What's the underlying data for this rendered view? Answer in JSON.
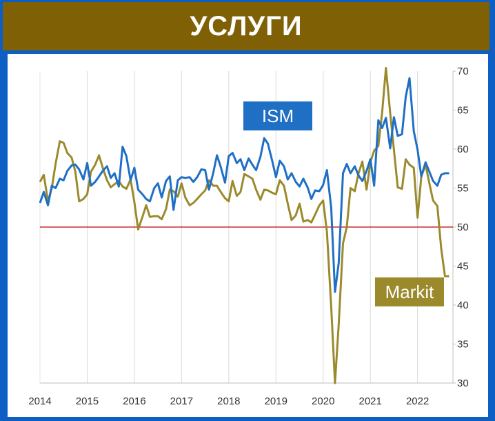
{
  "title": "УСЛУГИ",
  "colors": {
    "ism": "#1f6fc5",
    "markit": "#9b8a2c",
    "threshold": "#c00000",
    "title_bg": "#7f6004",
    "frame": "#0d5fc4"
  },
  "chart_data": {
    "type": "line",
    "title": "",
    "xlabel": "",
    "ylabel": "",
    "ylim": [
      30,
      70
    ],
    "xlim": [
      2014,
      2022.75
    ],
    "y_ticks": [
      "30",
      "35",
      "40",
      "45",
      "50",
      "55",
      "60",
      "65",
      "70"
    ],
    "x_ticks": [
      "2014",
      "2015",
      "2016",
      "2017",
      "2018",
      "2019",
      "2020",
      "2021",
      "2022"
    ],
    "grid": "vertical",
    "threshold": 50,
    "series": [
      {
        "name": "ISM",
        "x": [
          2014.0,
          2014.08,
          2014.17,
          2014.25,
          2014.33,
          2014.42,
          2014.5,
          2014.58,
          2014.67,
          2014.75,
          2014.83,
          2014.92,
          2015.0,
          2015.08,
          2015.17,
          2015.25,
          2015.33,
          2015.42,
          2015.5,
          2015.58,
          2015.67,
          2015.75,
          2015.83,
          2015.92,
          2016.0,
          2016.08,
          2016.17,
          2016.25,
          2016.33,
          2016.42,
          2016.5,
          2016.58,
          2016.67,
          2016.75,
          2016.83,
          2016.92,
          2017.0,
          2017.08,
          2017.17,
          2017.25,
          2017.33,
          2017.42,
          2017.5,
          2017.58,
          2017.67,
          2017.75,
          2017.83,
          2017.92,
          2018.0,
          2018.08,
          2018.17,
          2018.25,
          2018.33,
          2018.42,
          2018.5,
          2018.58,
          2018.67,
          2018.75,
          2018.83,
          2018.92,
          2019.0,
          2019.08,
          2019.17,
          2019.25,
          2019.33,
          2019.42,
          2019.5,
          2019.58,
          2019.67,
          2019.75,
          2019.83,
          2019.92,
          2020.0,
          2020.08,
          2020.17,
          2020.25,
          2020.33,
          2020.42,
          2020.5,
          2020.58,
          2020.67,
          2020.75,
          2020.83,
          2020.92,
          2021.0,
          2021.08,
          2021.17,
          2021.25,
          2021.33,
          2021.42,
          2021.5,
          2021.58,
          2021.67,
          2021.75,
          2021.83,
          2021.92,
          2022.0,
          2022.08,
          2022.17,
          2022.25,
          2022.33,
          2022.42,
          2022.5,
          2022.58,
          2022.67
        ],
        "y": [
          53.1,
          54.5,
          52.8,
          55.3,
          55.0,
          56.2,
          56.0,
          57.2,
          57.9,
          58.0,
          57.4,
          56.1,
          58.2,
          55.3,
          55.8,
          56.5,
          57.2,
          57.8,
          56.3,
          56.9,
          55.2,
          60.3,
          59.1,
          56.0,
          57.6,
          54.8,
          54.2,
          53.6,
          53.3,
          55.0,
          55.6,
          53.8,
          55.9,
          56.5,
          52.2,
          56.0,
          56.4,
          56.3,
          56.4,
          55.8,
          56.4,
          57.4,
          57.3,
          54.8,
          56.9,
          59.2,
          57.7,
          55.7,
          59.1,
          59.5,
          58.2,
          58.7,
          57.3,
          58.8,
          58.0,
          57.3,
          59.0,
          61.4,
          60.7,
          58.5,
          56.4,
          58.5,
          57.8,
          56.1,
          56.9,
          55.8,
          55.2,
          56.2,
          55.1,
          53.6,
          54.7,
          54.6,
          55.4,
          57.3,
          52.5,
          41.7,
          45.4,
          56.9,
          58.1,
          56.9,
          57.8,
          56.6,
          55.9,
          57.2,
          58.7,
          55.3,
          63.7,
          62.7,
          64.0,
          60.1,
          64.1,
          61.7,
          61.9,
          66.7,
          69.1,
          62.3,
          59.9,
          56.5,
          58.3,
          57.1,
          55.9,
          55.3,
          56.7,
          56.9,
          56.9
        ]
      },
      {
        "name": "Markit",
        "x": [
          2014.0,
          2014.08,
          2014.17,
          2014.25,
          2014.33,
          2014.42,
          2014.5,
          2014.58,
          2014.67,
          2014.75,
          2014.83,
          2014.92,
          2015.0,
          2015.08,
          2015.17,
          2015.25,
          2015.33,
          2015.42,
          2015.5,
          2015.58,
          2015.67,
          2015.75,
          2015.83,
          2015.92,
          2016.0,
          2016.08,
          2016.17,
          2016.25,
          2016.33,
          2016.42,
          2016.5,
          2016.58,
          2016.67,
          2016.75,
          2016.83,
          2016.92,
          2017.0,
          2017.08,
          2017.17,
          2017.25,
          2017.33,
          2017.42,
          2017.5,
          2017.58,
          2017.67,
          2017.75,
          2017.83,
          2017.92,
          2018.0,
          2018.08,
          2018.17,
          2018.25,
          2018.33,
          2018.42,
          2018.5,
          2018.58,
          2018.67,
          2018.75,
          2018.83,
          2018.92,
          2019.0,
          2019.08,
          2019.17,
          2019.25,
          2019.33,
          2019.42,
          2019.5,
          2019.58,
          2019.67,
          2019.75,
          2019.83,
          2019.92,
          2020.0,
          2020.08,
          2020.17,
          2020.25,
          2020.33,
          2020.42,
          2020.5,
          2020.58,
          2020.67,
          2020.75,
          2020.83,
          2020.92,
          2021.0,
          2021.08,
          2021.17,
          2021.25,
          2021.33,
          2021.42,
          2021.5,
          2021.58,
          2021.67,
          2021.75,
          2021.83,
          2021.92,
          2022.0,
          2022.08,
          2022.17,
          2022.25,
          2022.33,
          2022.42,
          2022.5,
          2022.58,
          2022.67
        ],
        "y": [
          55.8,
          56.7,
          53.3,
          55.0,
          58.1,
          61.0,
          60.8,
          59.5,
          58.9,
          57.1,
          53.3,
          53.6,
          54.2,
          57.1,
          58.0,
          59.2,
          57.6,
          56.0,
          55.1,
          55.5,
          55.9,
          55.2,
          54.9,
          56.1,
          53.2,
          49.7,
          51.3,
          52.8,
          51.3,
          51.4,
          51.4,
          51.0,
          52.3,
          54.8,
          54.6,
          53.9,
          55.6,
          53.8,
          52.8,
          53.1,
          53.6,
          54.2,
          54.7,
          56.0,
          55.3,
          55.3,
          54.5,
          53.7,
          53.3,
          55.9,
          54.0,
          54.5,
          56.8,
          56.5,
          56.2,
          54.8,
          53.5,
          54.8,
          54.7,
          54.4,
          54.2,
          56.0,
          55.3,
          53.0,
          50.9,
          51.5,
          53.0,
          50.7,
          50.9,
          50.6,
          51.6,
          52.8,
          53.4,
          49.4,
          39.8,
          26.7,
          37.5,
          47.9,
          50.0,
          55.0,
          54.6,
          56.9,
          58.4,
          54.8,
          58.3,
          59.8,
          60.4,
          64.7,
          70.4,
          64.6,
          59.9,
          55.1,
          54.9,
          58.7,
          58.0,
          57.6,
          51.2,
          56.5,
          58.0,
          55.6,
          53.4,
          52.7,
          47.3,
          43.7,
          43.7
        ]
      }
    ],
    "labels": {
      "ism": "ISM",
      "markit": "Markit"
    }
  }
}
